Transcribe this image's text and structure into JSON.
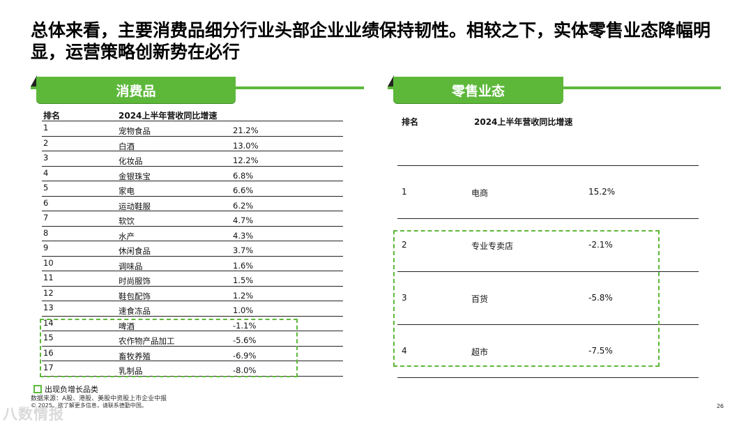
{
  "title": "总体来看，主要消费品细分行业头部企业业绩保持韧性。相较之下，实体零售业态降幅明显，运营策略创新势在必行",
  "left_section": {
    "tab_label": "消费品",
    "header": {
      "rank": "排名",
      "growth": "2024上半年营收同比增速"
    },
    "rows": [
      {
        "rank": "1",
        "category": "宠物食品",
        "growth": "21.2%"
      },
      {
        "rank": "2",
        "category": "白酒",
        "growth": "13.0%"
      },
      {
        "rank": "3",
        "category": "化妆品",
        "growth": "12.2%"
      },
      {
        "rank": "4",
        "category": "金银珠宝",
        "growth": "6.8%"
      },
      {
        "rank": "5",
        "category": "家电",
        "growth": "6.6%"
      },
      {
        "rank": "6",
        "category": "运动鞋服",
        "growth": "6.2%"
      },
      {
        "rank": "7",
        "category": "软饮",
        "growth": "4.7%"
      },
      {
        "rank": "8",
        "category": "水产",
        "growth": "4.3%"
      },
      {
        "rank": "9",
        "category": "休闲食品",
        "growth": "3.7%"
      },
      {
        "rank": "10",
        "category": "调味品",
        "growth": "1.6%"
      },
      {
        "rank": "11",
        "category": "时尚服饰",
        "growth": "1.5%"
      },
      {
        "rank": "12",
        "category": "鞋包配饰",
        "growth": "1.2%"
      },
      {
        "rank": "13",
        "category": "速食冻品",
        "growth": "1.0%"
      },
      {
        "rank": "14",
        "category": "啤酒",
        "growth": "-1.1%"
      },
      {
        "rank": "15",
        "category": "农作物产品加工",
        "growth": "-5.6%"
      },
      {
        "rank": "16",
        "category": "畜牧养殖",
        "growth": "-6.9%"
      },
      {
        "rank": "17",
        "category": "乳制品",
        "growth": "-8.0%"
      }
    ]
  },
  "right_section": {
    "tab_label": "零售业态",
    "header": {
      "rank": "排名",
      "growth": "2024上半年营收同比增速"
    },
    "rows": [
      {
        "rank": "1",
        "category": "电商",
        "growth": "15.2%"
      },
      {
        "rank": "2",
        "category": "专业专卖店",
        "growth": "-2.1%"
      },
      {
        "rank": "3",
        "category": "百货",
        "growth": "-5.8%"
      },
      {
        "rank": "4",
        "category": "超市",
        "growth": "-7.5%"
      }
    ]
  },
  "legend_label": "出现负增长品类",
  "source": "数据来源：A股、港股、美股中资股上市企业中报",
  "copyright": "© 2025。欲了解更多信息，请联系德勤中国。",
  "page_number": "26",
  "watermark": "八数情报",
  "colors": {
    "accent_green": "#5db83a",
    "rule_dark": "#222222"
  }
}
